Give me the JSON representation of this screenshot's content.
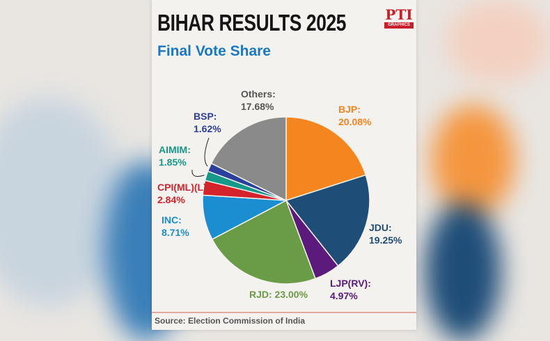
{
  "header": {
    "title": "BIHAR RESULTS 2025",
    "subtitle": "Final Vote Share",
    "logo_text": "PTI",
    "logo_subtext": "GRAPHICS"
  },
  "source": "Source: Election Commission of India",
  "chart_data": {
    "type": "pie",
    "title": "Final Vote Share",
    "slices": [
      {
        "name": "BJP",
        "value": 20.08,
        "label": "BJP:",
        "value_label": "20.08%",
        "color": "#f5861f"
      },
      {
        "name": "JDU",
        "value": 19.25,
        "label": "JDU:",
        "value_label": "19.25%",
        "color": "#1e4d78"
      },
      {
        "name": "LJP(RV)",
        "value": 4.97,
        "label": "LJP(RV):",
        "value_label": "4.97%",
        "color": "#5b1a7c"
      },
      {
        "name": "RJD",
        "value": 23.0,
        "label": "RJD: 23.00%",
        "value_label": "",
        "color": "#6a9b46"
      },
      {
        "name": "INC",
        "value": 8.71,
        "label": "INC:",
        "value_label": "8.71%",
        "color": "#1a8ed0"
      },
      {
        "name": "CPI(ML)(L)",
        "value": 2.84,
        "label": "CPI(ML)(L):",
        "value_label": "2.84%",
        "color": "#d4232a"
      },
      {
        "name": "AIMIM",
        "value": 1.85,
        "label": "AIMIM:",
        "value_label": "1.85%",
        "color": "#17998a"
      },
      {
        "name": "BSP",
        "value": 1.62,
        "label": "BSP:",
        "value_label": "1.62%",
        "color": "#2b3f9c"
      },
      {
        "name": "Others",
        "value": 17.68,
        "label": "Others:",
        "value_label": "17.68%",
        "color": "#8a8a8a"
      }
    ]
  }
}
